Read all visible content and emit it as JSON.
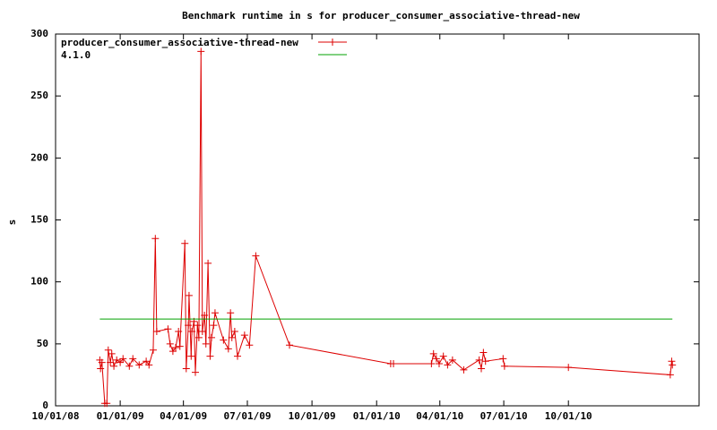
{
  "chart_data": {
    "type": "line",
    "title": "Benchmark runtime in s for producer_consumer_associative-thread-new",
    "ylabel": "s",
    "xlim": [
      "2008-10-01",
      "2011-04-05"
    ],
    "xticks": [
      {
        "value": "2008-10-01",
        "label": "10/01/08"
      },
      {
        "value": "2009-01-01",
        "label": "01/01/09"
      },
      {
        "value": "2009-04-01",
        "label": "04/01/09"
      },
      {
        "value": "2009-07-01",
        "label": "07/01/09"
      },
      {
        "value": "2009-10-01",
        "label": "10/01/09"
      },
      {
        "value": "2010-01-01",
        "label": "01/01/10"
      },
      {
        "value": "2010-04-01",
        "label": "04/01/10"
      },
      {
        "value": "2010-07-01",
        "label": "07/01/10"
      },
      {
        "value": "2010-10-01",
        "label": "10/01/10"
      }
    ],
    "ylim": [
      0,
      300
    ],
    "yticks": [
      0,
      50,
      100,
      150,
      200,
      250,
      300
    ],
    "legend": "upper left",
    "series": [
      {
        "name": "producer_consumer_associative-thread-new",
        "color": "#dd0000",
        "marker": "+",
        "x": [
          "2008-12-03",
          "2008-12-04",
          "2008-12-06",
          "2008-12-10",
          "2008-12-13",
          "2008-12-15",
          "2008-12-18",
          "2008-12-20",
          "2008-12-23",
          "2008-12-27",
          "2009-01-01",
          "2009-01-05",
          "2009-01-14",
          "2009-01-19",
          "2009-01-28",
          "2009-02-07",
          "2009-02-11",
          "2009-02-17",
          "2009-02-20",
          "2009-02-22",
          "2009-03-10",
          "2009-03-13",
          "2009-03-17",
          "2009-03-21",
          "2009-03-25",
          "2009-03-27",
          "2009-04-03",
          "2009-04-05",
          "2009-04-08",
          "2009-04-09",
          "2009-04-12",
          "2009-04-13",
          "2009-04-16",
          "2009-04-18",
          "2009-04-21",
          "2009-04-23",
          "2009-04-26",
          "2009-04-28",
          "2009-05-01",
          "2009-05-03",
          "2009-05-06",
          "2009-05-09",
          "2009-05-11",
          "2009-05-14",
          "2009-05-16",
          "2009-05-28",
          "2009-06-04",
          "2009-06-07",
          "2009-06-09",
          "2009-06-13",
          "2009-06-17",
          "2009-06-27",
          "2009-07-04",
          "2009-07-13",
          "2009-08-30",
          "2010-01-21",
          "2010-01-25",
          "2010-03-20",
          "2010-03-23",
          "2010-03-27",
          "2010-03-31",
          "2010-04-06",
          "2010-04-12",
          "2010-04-19",
          "2010-05-05",
          "2010-05-27",
          "2010-05-30",
          "2010-06-02",
          "2010-06-05",
          "2010-06-30",
          "2010-07-02",
          "2010-10-01",
          "2011-02-23",
          "2011-02-25",
          "2011-02-26"
        ],
        "values": [
          37,
          30,
          35,
          2,
          2,
          45,
          35,
          42,
          32,
          37,
          35,
          38,
          32,
          38,
          33,
          36,
          33,
          45,
          135,
          60,
          62,
          50,
          44,
          47,
          60,
          48,
          131,
          30,
          65,
          89,
          40,
          60,
          68,
          27,
          65,
          55,
          286,
          60,
          73,
          50,
          115,
          40,
          55,
          65,
          75,
          53,
          46,
          75,
          55,
          60,
          40,
          57,
          49,
          121,
          49,
          34,
          34,
          34,
          42,
          38,
          34,
          40,
          33,
          37,
          29,
          37,
          30,
          43,
          36,
          38,
          32,
          31,
          25,
          36,
          33
        ]
      },
      {
        "name": "4.1.0",
        "color": "#00a000",
        "x": [
          "2008-12-03",
          "2011-02-26"
        ],
        "values": [
          70,
          70
        ]
      }
    ]
  }
}
